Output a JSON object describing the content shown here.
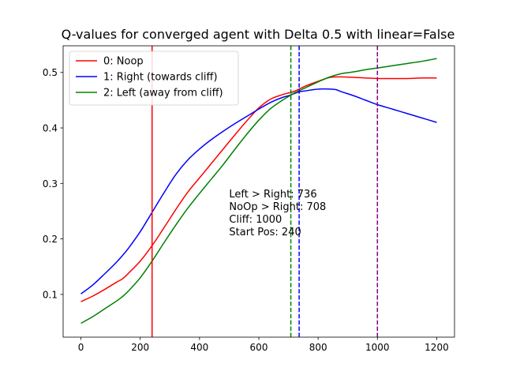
{
  "chart_data": {
    "type": "line",
    "title": "Q-values for converged agent with Delta 0.5 with linear=False",
    "xlabel": "",
    "ylabel": "",
    "xlim": [
      -60,
      1260
    ],
    "ylim": [
      0.023,
      0.548
    ],
    "xticks": [
      0,
      200,
      400,
      600,
      800,
      1000,
      1200
    ],
    "yticks": [
      0.1,
      0.2,
      0.3,
      0.4,
      0.5
    ],
    "xtick_labels": [
      "0",
      "200",
      "400",
      "600",
      "800",
      "1000",
      "1200"
    ],
    "ytick_labels": [
      "0.1",
      "0.2",
      "0.3",
      "0.4",
      "0.5"
    ],
    "grid": false,
    "legend_position": "upper-left",
    "series": [
      {
        "name": "0: Noop",
        "color": "#ff0000",
        "x": [
          0,
          40,
          80,
          120,
          140,
          160,
          200,
          240,
          280,
          320,
          360,
          400,
          440,
          480,
          520,
          560,
          600,
          640,
          680,
          700,
          720,
          760,
          800,
          840,
          880,
          920,
          960,
          1000,
          1050,
          1100,
          1150,
          1200
        ],
        "y": [
          0.087,
          0.097,
          0.109,
          0.122,
          0.128,
          0.138,
          0.16,
          0.188,
          0.22,
          0.253,
          0.284,
          0.31,
          0.336,
          0.362,
          0.388,
          0.413,
          0.436,
          0.452,
          0.46,
          0.463,
          0.466,
          0.476,
          0.484,
          0.491,
          0.492,
          0.491,
          0.49,
          0.489,
          0.489,
          0.489,
          0.49,
          0.49
        ]
      },
      {
        "name": "1: Right (towards cliff)",
        "color": "#0000ff",
        "x": [
          0,
          40,
          80,
          120,
          140,
          160,
          200,
          240,
          280,
          320,
          360,
          400,
          440,
          480,
          520,
          560,
          600,
          640,
          680,
          700,
          720,
          736,
          760,
          800,
          840,
          860,
          880,
          920,
          960,
          1000,
          1050,
          1100,
          1150,
          1200
        ],
        "y": [
          0.101,
          0.117,
          0.137,
          0.158,
          0.17,
          0.183,
          0.213,
          0.248,
          0.283,
          0.316,
          0.342,
          0.362,
          0.379,
          0.394,
          0.408,
          0.421,
          0.434,
          0.446,
          0.455,
          0.458,
          0.462,
          0.465,
          0.467,
          0.47,
          0.47,
          0.469,
          0.465,
          0.458,
          0.45,
          0.442,
          0.434,
          0.426,
          0.418,
          0.41
        ]
      },
      {
        "name": "2: Left (away from cliff)",
        "color": "#008000",
        "x": [
          0,
          40,
          80,
          120,
          140,
          160,
          200,
          240,
          280,
          320,
          360,
          400,
          440,
          480,
          520,
          560,
          600,
          640,
          680,
          708,
          720,
          760,
          800,
          840,
          880,
          920,
          960,
          1000,
          1050,
          1100,
          1150,
          1200
        ],
        "y": [
          0.048,
          0.06,
          0.074,
          0.088,
          0.096,
          0.106,
          0.13,
          0.16,
          0.193,
          0.225,
          0.255,
          0.282,
          0.308,
          0.334,
          0.362,
          0.389,
          0.414,
          0.435,
          0.45,
          0.459,
          0.463,
          0.473,
          0.483,
          0.492,
          0.498,
          0.501,
          0.505,
          0.508,
          0.512,
          0.516,
          0.52,
          0.525
        ]
      }
    ],
    "vlines": [
      {
        "x": 240,
        "color": "#ff0000",
        "style": "solid"
      },
      {
        "x": 708,
        "color": "#008000",
        "style": "dashed"
      },
      {
        "x": 736,
        "color": "#0000ff",
        "style": "dashed"
      },
      {
        "x": 1000,
        "color": "#800080",
        "style": "dashed"
      }
    ],
    "annotations": [
      "Left > Right: 736",
      "NoOp > Right: 708",
      "Cliff: 1000",
      "Start Pos: 240"
    ],
    "annotation_anchor": {
      "x": 500,
      "y": 0.275
    }
  }
}
